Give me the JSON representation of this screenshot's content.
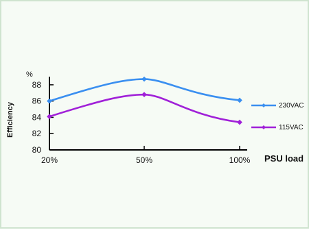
{
  "chart_data": {
    "type": "line",
    "title": "",
    "categories": [
      "20%",
      "50%",
      "100%"
    ],
    "xlabel": "PSU load",
    "ylabel": "Efficiency",
    "yunit": "%",
    "ylim": [
      80,
      89
    ],
    "yticks": [
      80,
      82,
      84,
      86,
      88
    ],
    "legend_position": "right",
    "grid": false,
    "series": [
      {
        "name": "230VAC",
        "color": "#3a8ff0",
        "values": [
          86.0,
          88.7,
          86.1
        ]
      },
      {
        "name": "115VAC",
        "color": "#a020d8",
        "values": [
          84.1,
          86.8,
          83.4
        ]
      }
    ]
  }
}
